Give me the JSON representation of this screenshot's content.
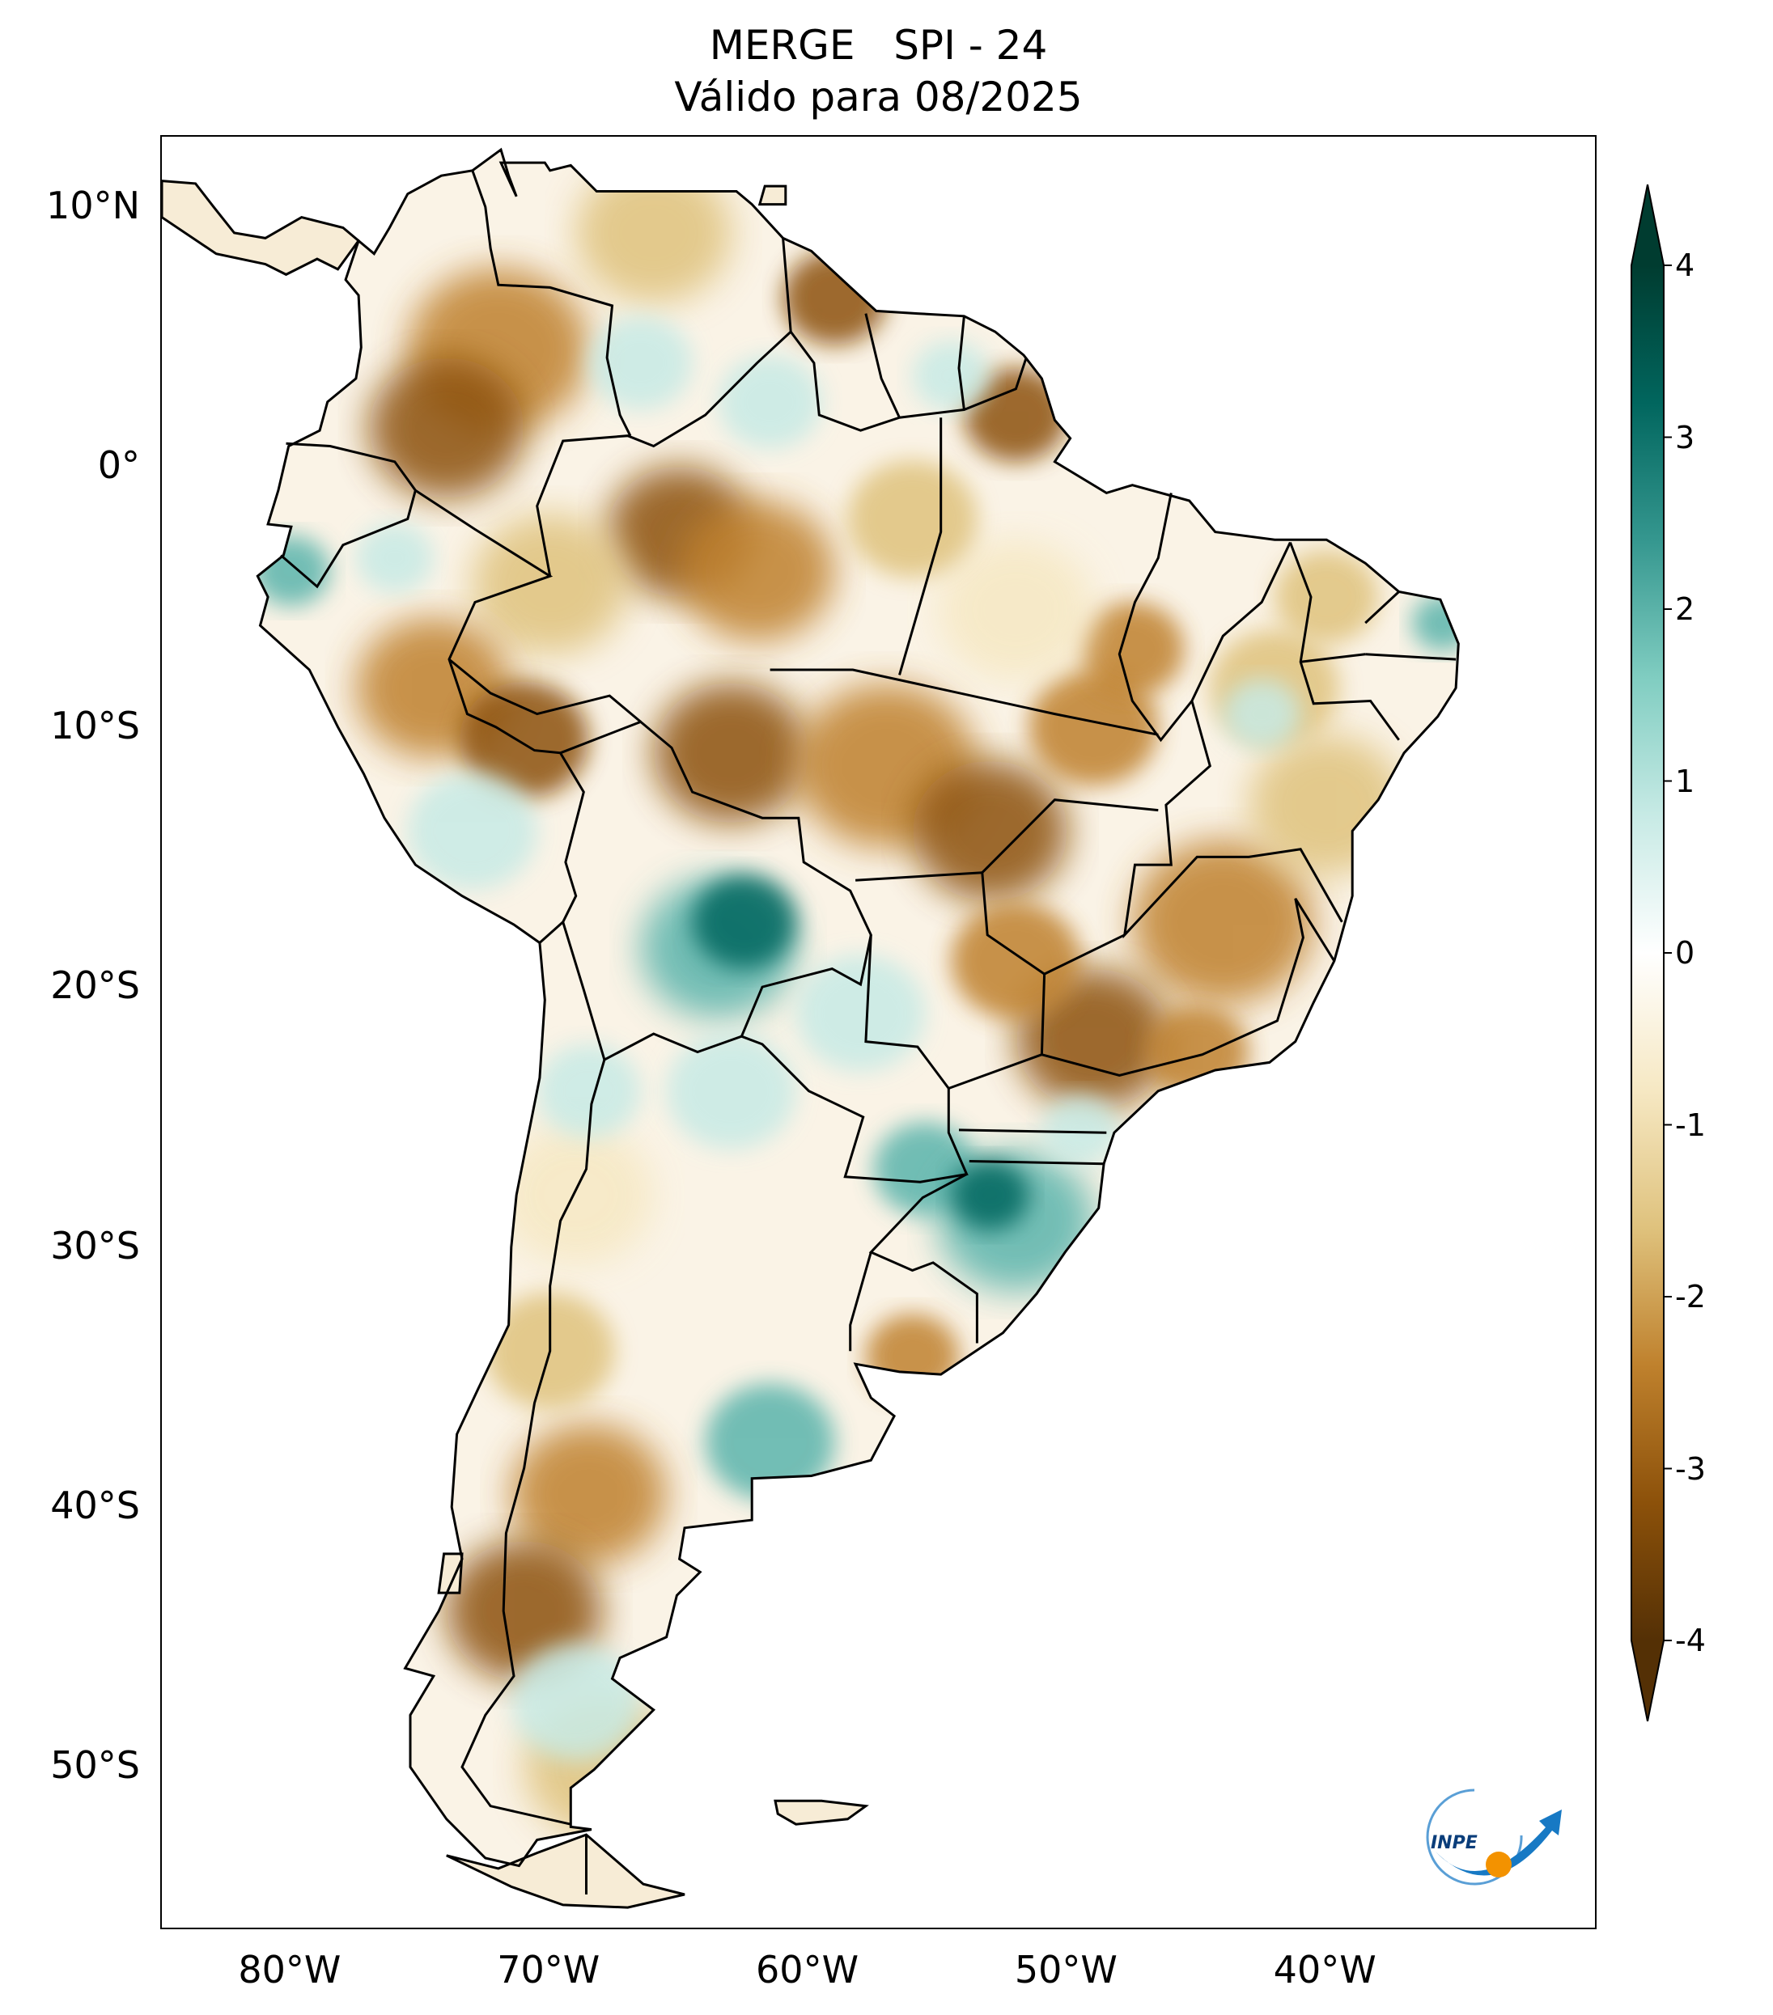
{
  "title": {
    "line1": "MERGE   SPI - 24",
    "line2": "Válido para 08/2025"
  },
  "axes": {
    "lat_ticks": [
      {
        "label": "10°N",
        "value": 10
      },
      {
        "label": "0°",
        "value": 0
      },
      {
        "label": "10°S",
        "value": -10
      },
      {
        "label": "20°S",
        "value": -20
      },
      {
        "label": "30°S",
        "value": -30
      },
      {
        "label": "40°S",
        "value": -40
      },
      {
        "label": "50°S",
        "value": -50
      }
    ],
    "lon_ticks": [
      {
        "label": "80°W",
        "value": -80
      },
      {
        "label": "70°W",
        "value": -70
      },
      {
        "label": "60°W",
        "value": -60
      },
      {
        "label": "50°W",
        "value": -50
      },
      {
        "label": "40°W",
        "value": -40
      }
    ],
    "lat_range": [
      -56.3,
      12.7
    ],
    "lon_range": [
      -85.0,
      -29.5
    ]
  },
  "colorbar": {
    "min": -4,
    "max": 4,
    "ticks": [
      {
        "label": "4",
        "value": 4
      },
      {
        "label": "3",
        "value": 3
      },
      {
        "label": "2",
        "value": 2
      },
      {
        "label": "1",
        "value": 1
      },
      {
        "label": "0",
        "value": 0
      },
      {
        "label": "-1",
        "value": -1
      },
      {
        "label": "-2",
        "value": -2
      },
      {
        "label": "-3",
        "value": -3
      },
      {
        "label": "-4",
        "value": -4
      }
    ],
    "colors": [
      "#543005",
      "#8c510a",
      "#bf812d",
      "#dfc27d",
      "#f6e8c3",
      "#ffffff",
      "#c7eae5",
      "#80cdc1",
      "#35978f",
      "#01665e",
      "#003c30"
    ],
    "extend": "both"
  },
  "logo": {
    "text": "INPE"
  },
  "colors": {
    "dry_strong": "#8c510a",
    "dry_moderate": "#bf812d",
    "dry_light": "#dfc27d",
    "dry_faint": "#f6e8c3",
    "wet_light": "#c7eae5",
    "wet_moderate": "#5ab4ac",
    "wet_strong": "#01665e",
    "logo_blue": "#1779c4",
    "logo_orange": "#f39200"
  }
}
